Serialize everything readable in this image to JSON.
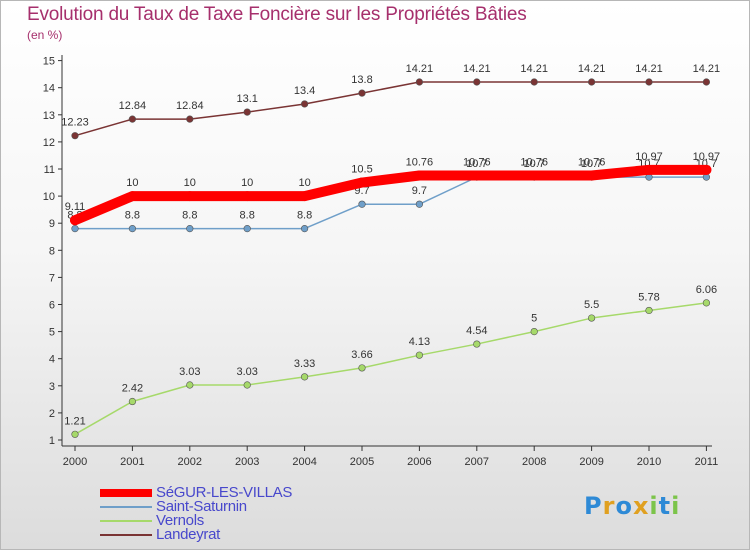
{
  "title": "Evolution du Taux de Taxe Foncière sur les Propriétés Bâties",
  "subtitle": "(en %)",
  "logo": {
    "text": "Proxiti",
    "letters": [
      {
        "char": "P",
        "color": "#2e8ad6"
      },
      {
        "char": "r",
        "color": "#e0a020"
      },
      {
        "char": "o",
        "color": "#2e8ad6"
      },
      {
        "char": "x",
        "color": "#e0a020"
      },
      {
        "char": "i",
        "color": "#7cc44a"
      },
      {
        "char": "t",
        "color": "#2e8ad6"
      },
      {
        "char": "i",
        "color": "#7cc44a"
      }
    ]
  },
  "chart_data": {
    "type": "line",
    "title": "Evolution du Taux de Taxe Foncière sur les Propriétés Bâties",
    "ylabel": "(en %)",
    "x": [
      "2000",
      "2001",
      "2002",
      "2003",
      "2004",
      "2005",
      "2006",
      "2007",
      "2008",
      "2009",
      "2010",
      "2011"
    ],
    "ylim": [
      1,
      15
    ],
    "yticks": [
      1,
      2,
      3,
      4,
      5,
      6,
      7,
      8,
      9,
      10,
      11,
      12,
      13,
      14,
      15
    ],
    "grid": false,
    "legend_position": "bottom-left",
    "series": [
      {
        "name": "Landeyrat",
        "color": "#7a3434",
        "values": [
          12.23,
          12.84,
          12.84,
          13.1,
          13.4,
          13.8,
          14.21,
          14.21,
          14.21,
          14.21,
          14.21,
          14.21
        ],
        "labels": [
          "12.23",
          "12.84",
          "12.84",
          "13.1",
          "13.4",
          "13.8",
          "14.21",
          "14.21",
          "14.21",
          "14.21",
          "14.21",
          "14.21"
        ]
      },
      {
        "name": "Saint-Saturnin",
        "color": "#6f9fc9",
        "values": [
          8.8,
          8.8,
          8.8,
          8.8,
          8.8,
          9.7,
          9.7,
          10.7,
          10.7,
          10.7,
          10.7,
          10.7
        ],
        "labels": [
          "8.8",
          "8.8",
          "8.8",
          "8.8",
          "8.8",
          "9.7",
          "9.7",
          "10.7",
          "10.7",
          "10.7",
          "10.7",
          "10.7"
        ]
      },
      {
        "name": "Vernols",
        "color": "#a6d96a",
        "values": [
          1.21,
          2.42,
          3.03,
          3.03,
          3.33,
          3.66,
          4.13,
          4.54,
          5,
          5.5,
          5.78,
          6.06
        ],
        "labels": [
          "1.21",
          "2.42",
          "3.03",
          "3.03",
          "3.33",
          "3.66",
          "4.13",
          "4.54",
          "5",
          "5.5",
          "5.78",
          "6.06"
        ]
      },
      {
        "name": "SéGUR-LES-VILLAS",
        "color": "#ff0000",
        "values": [
          9.11,
          10,
          10,
          10,
          10,
          10.5,
          10.76,
          10.76,
          10.76,
          10.76,
          10.97,
          10.97
        ],
        "labels": [
          "9.11",
          "10",
          "10",
          "10",
          "10",
          "10.5",
          "10.76",
          "10.76",
          "10.76",
          "10.76",
          "10.97",
          "10.97"
        ]
      }
    ],
    "legend": [
      {
        "name": "SéGUR-LES-VILLAS",
        "color": "#ff0000"
      },
      {
        "name": "Saint-Saturnin",
        "color": "#6f9fc9"
      },
      {
        "name": "Vernols",
        "color": "#a6d96a"
      },
      {
        "name": "Landeyrat",
        "color": "#7a3434"
      }
    ]
  }
}
